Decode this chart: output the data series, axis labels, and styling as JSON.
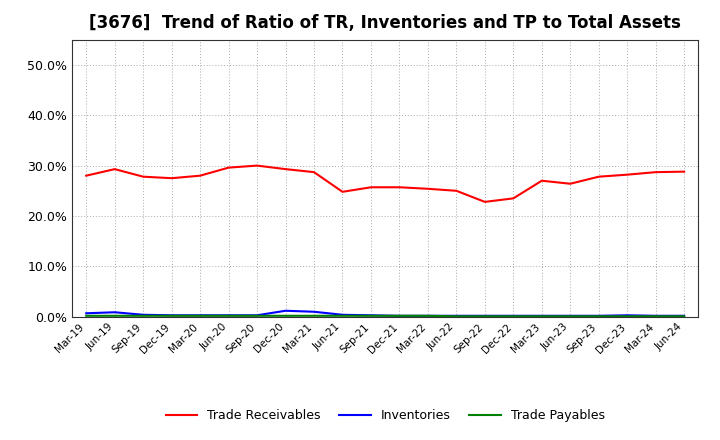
{
  "title": "[3676]  Trend of Ratio of TR, Inventories and TP to Total Assets",
  "x_labels": [
    "Mar-19",
    "Jun-19",
    "Sep-19",
    "Dec-19",
    "Mar-20",
    "Jun-20",
    "Sep-20",
    "Dec-20",
    "Mar-21",
    "Jun-21",
    "Sep-21",
    "Dec-21",
    "Mar-22",
    "Jun-22",
    "Sep-22",
    "Dec-22",
    "Mar-23",
    "Jun-23",
    "Sep-23",
    "Dec-23",
    "Mar-24",
    "Jun-24"
  ],
  "trade_receivables": [
    0.28,
    0.293,
    0.278,
    0.275,
    0.28,
    0.296,
    0.3,
    0.293,
    0.287,
    0.248,
    0.257,
    0.257,
    0.254,
    0.25,
    0.228,
    0.235,
    0.27,
    0.264,
    0.278,
    0.282,
    0.287,
    0.288
  ],
  "inventories": [
    0.007,
    0.009,
    0.004,
    0.003,
    0.003,
    0.003,
    0.003,
    0.012,
    0.01,
    0.004,
    0.003,
    0.002,
    0.002,
    0.002,
    0.002,
    0.002,
    0.002,
    0.002,
    0.002,
    0.003,
    0.002,
    0.002
  ],
  "trade_payables": [
    0.002,
    0.002,
    0.002,
    0.002,
    0.002,
    0.002,
    0.002,
    0.002,
    0.002,
    0.002,
    0.002,
    0.002,
    0.002,
    0.001,
    0.001,
    0.001,
    0.001,
    0.001,
    0.001,
    0.001,
    0.001,
    0.001
  ],
  "tr_color": "#FF0000",
  "inv_color": "#0000FF",
  "tp_color": "#008000",
  "ylim": [
    0.0,
    0.55
  ],
  "yticks": [
    0.0,
    0.1,
    0.2,
    0.3,
    0.4,
    0.5
  ],
  "background_color": "#FFFFFF",
  "plot_bg_color": "#FFFFFF",
  "grid_color": "#AAAAAA",
  "title_fontsize": 12,
  "legend_labels": [
    "Trade Receivables",
    "Inventories",
    "Trade Payables"
  ]
}
